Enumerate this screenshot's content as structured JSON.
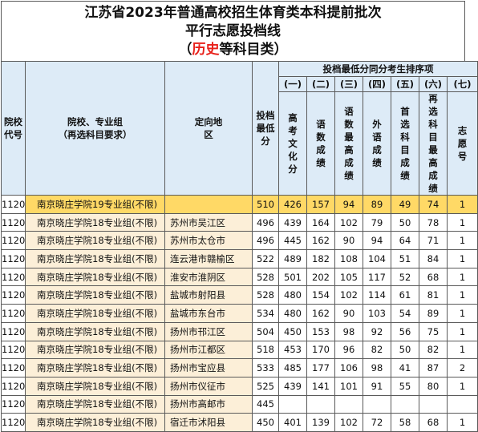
{
  "title": {
    "line1": "江苏省2023年普通高校招生体育类本科提前批次",
    "line2": "平行志愿投档线",
    "line3_prefix": "（",
    "line3_highlight": "历史",
    "line3_suffix": "等科目类）"
  },
  "header": {
    "code": "院校代号",
    "group": "院校、专业组",
    "group_sub": "（再选科目要求）",
    "location": "定向地区",
    "min_score": "投档最低分",
    "tiebreak_title": "投档最低分同分考生排序项",
    "tiebreak_cols": [
      {
        "num": "(一)",
        "label": "高考文化分"
      },
      {
        "num": "(二)",
        "label": "语数成绩"
      },
      {
        "num": "(三)",
        "label": "语数最高成绩"
      },
      {
        "num": "(四)",
        "label": "外语成绩"
      },
      {
        "num": "(五)",
        "label": "首选科目成绩"
      },
      {
        "num": "(六)",
        "label": "再选科目最高成绩"
      },
      {
        "num": "(七)",
        "label": "志愿号"
      }
    ]
  },
  "rows": [
    {
      "code": "1120",
      "group": "南京晓庄学院19专业组(不限)",
      "loc": "",
      "score": "510",
      "c1": "426",
      "c2": "157",
      "c3": "94",
      "c4": "89",
      "c5": "49",
      "c6": "74",
      "c7": "1",
      "highlight": true
    },
    {
      "code": "1120",
      "group": "南京晓庄学院18专业组(不限)",
      "loc": "苏州市吴江区",
      "score": "496",
      "c1": "439",
      "c2": "164",
      "c3": "102",
      "c4": "79",
      "c5": "50",
      "c6": "78",
      "c7": "1",
      "highlight": false
    },
    {
      "code": "1120",
      "group": "南京晓庄学院18专业组(不限)",
      "loc": "苏州市太仓市",
      "score": "496",
      "c1": "445",
      "c2": "162",
      "c3": "90",
      "c4": "94",
      "c5": "64",
      "c6": "71",
      "c7": "1",
      "highlight": false
    },
    {
      "code": "1120",
      "group": "南京晓庄学院18专业组(不限)",
      "loc": "连云港市赣榆区",
      "score": "522",
      "c1": "489",
      "c2": "182",
      "c3": "108",
      "c4": "104",
      "c5": "51",
      "c6": "84",
      "c7": "1",
      "highlight": false
    },
    {
      "code": "1120",
      "group": "南京晓庄学院18专业组(不限)",
      "loc": "淮安市淮阴区",
      "score": "528",
      "c1": "501",
      "c2": "202",
      "c3": "105",
      "c4": "117",
      "c5": "52",
      "c6": "68",
      "c7": "1",
      "highlight": false
    },
    {
      "code": "1120",
      "group": "南京晓庄学院18专业组(不限)",
      "loc": "盐城市射阳县",
      "score": "528",
      "c1": "480",
      "c2": "154",
      "c3": "102",
      "c4": "114",
      "c5": "61",
      "c6": "81",
      "c7": "1",
      "highlight": false
    },
    {
      "code": "1120",
      "group": "南京晓庄学院18专业组(不限)",
      "loc": "盐城市东台市",
      "score": "534",
      "c1": "480",
      "c2": "162",
      "c3": "90",
      "c4": "103",
      "c5": "54",
      "c6": "89",
      "c7": "1",
      "highlight": false
    },
    {
      "code": "1120",
      "group": "南京晓庄学院18专业组(不限)",
      "loc": "扬州市邗江区",
      "score": "504",
      "c1": "450",
      "c2": "153",
      "c3": "98",
      "c4": "92",
      "c5": "56",
      "c6": "75",
      "c7": "1",
      "highlight": false
    },
    {
      "code": "1120",
      "group": "南京晓庄学院18专业组(不限)",
      "loc": "扬州市江都区",
      "score": "518",
      "c1": "453",
      "c2": "170",
      "c3": "96",
      "c4": "82",
      "c5": "50",
      "c6": "82",
      "c7": "1",
      "highlight": false
    },
    {
      "code": "1120",
      "group": "南京晓庄学院18专业组(不限)",
      "loc": "扬州市宝应县",
      "score": "533",
      "c1": "485",
      "c2": "177",
      "c3": "106",
      "c4": "98",
      "c5": "41",
      "c6": "87",
      "c7": "2",
      "highlight": false
    },
    {
      "code": "1120",
      "group": "南京晓庄学院18专业组(不限)",
      "loc": "扬州市仪征市",
      "score": "525",
      "c1": "439",
      "c2": "141",
      "c3": "101",
      "c4": "91",
      "c5": "55",
      "c6": "80",
      "c7": "1",
      "highlight": false
    },
    {
      "code": "1120",
      "group": "南京晓庄学院18专业组(不限)",
      "loc": "扬州市高邮市",
      "score": "445",
      "c1": "",
      "c2": "",
      "c3": "",
      "c4": "",
      "c5": "",
      "c6": "",
      "c7": "",
      "highlight": false
    },
    {
      "code": "1120",
      "group": "南京晓庄学院18专业组(不限)",
      "loc": "宿迁市沭阳县",
      "score": "450",
      "c1": "401",
      "c2": "139",
      "c3": "102",
      "c4": "72",
      "c5": "58",
      "c6": "68",
      "c7": "1",
      "highlight": false
    }
  ]
}
